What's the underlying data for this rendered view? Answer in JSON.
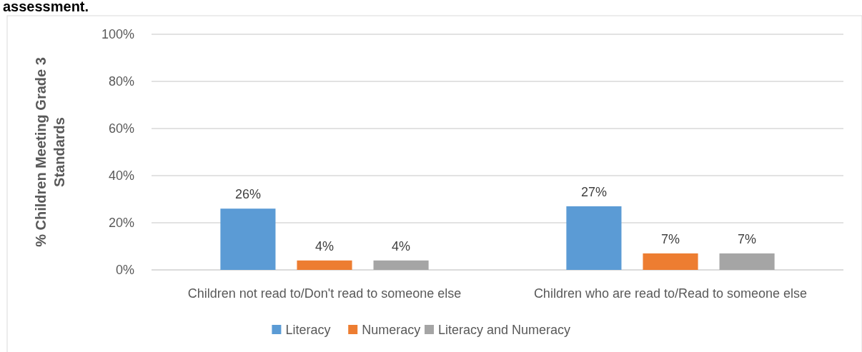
{
  "chart_data": {
    "type": "bar",
    "title": "assessment.",
    "ylabel": "% Children Meeting Grade 3 Standards",
    "categories": [
      "Children not read to/Don't read to someone else",
      "Children who are read to/Read to someone else"
    ],
    "series": [
      {
        "name": "Literacy",
        "color": "#5b9bd5",
        "values": [
          26,
          27
        ],
        "value_labels": [
          "26%",
          "27%"
        ]
      },
      {
        "name": "Numeracy",
        "color": "#ed7d31",
        "values": [
          4,
          7
        ],
        "value_labels": [
          "4%",
          "7%"
        ]
      },
      {
        "name": "Literacy and Numeracy",
        "color": "#a5a5a5",
        "values": [
          4,
          7
        ],
        "value_labels": [
          "4%",
          "7%"
        ]
      }
    ],
    "ylim": [
      0,
      100
    ],
    "yticks": [
      {
        "value": 0,
        "label": "0%"
      },
      {
        "value": 20,
        "label": "20%"
      },
      {
        "value": 40,
        "label": "40%"
      },
      {
        "value": 60,
        "label": "60%"
      },
      {
        "value": 80,
        "label": "80%"
      },
      {
        "value": 100,
        "label": "100%"
      }
    ],
    "grid": "y",
    "legend": "bottom"
  }
}
